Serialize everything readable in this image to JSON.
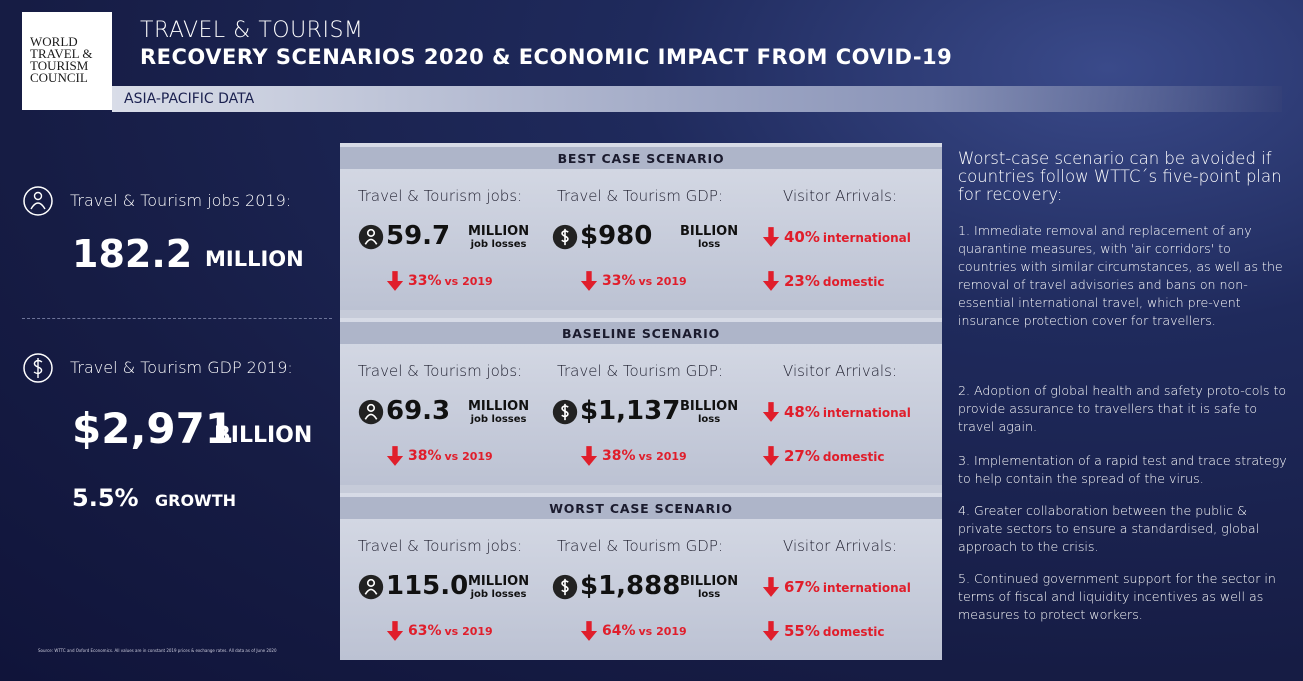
{
  "logo": [
    "WORLD",
    "TRAVEL &",
    "TOURISM",
    "COUNCIL"
  ],
  "header": {
    "title": "TRAVEL & TOURISM",
    "subtitle": "RECOVERY SCENARIOS 2020 & ECONOMIC IMPACT FROM COVID-19",
    "region": "ASIA-PACIFIC DATA"
  },
  "summary": {
    "jobs": {
      "label": "Travel & Tourism jobs 2019:",
      "value": "182.2",
      "unit": "MILLION"
    },
    "gdp": {
      "label": "Travel & Tourism GDP 2019:",
      "value": "$2,971",
      "unit": "BILLION"
    },
    "growth": {
      "value": "5.5%",
      "label": "GROWTH"
    },
    "source": "Source: WTTC and Oxford Economics. All values are in constant 2019 prices & exchange rates. All data as of June 2020"
  },
  "scenarios": [
    {
      "title": "BEST CASE SCENARIO",
      "jobs": {
        "label": "Travel & Tourism jobs:",
        "value": "59.7",
        "unit": "MILLION",
        "note": "job losses",
        "change": "33%",
        "compare": "vs 2019"
      },
      "gdp": {
        "label": "Travel & Tourism GDP:",
        "value": "$980",
        "unit": "BILLION",
        "note": "loss",
        "change": "33%",
        "compare": "vs 2019"
      },
      "arrivals": {
        "label": "Visitor Arrivals:",
        "international": "40%",
        "international_label": "international",
        "domestic": "23%",
        "domestic_label": "domestic"
      }
    },
    {
      "title": "BASELINE SCENARIO",
      "jobs": {
        "label": "Travel & Tourism jobs:",
        "value": "69.3",
        "unit": "MILLION",
        "note": "job losses",
        "change": "38%",
        "compare": "vs 2019"
      },
      "gdp": {
        "label": "Travel & Tourism GDP:",
        "value": "$1,137",
        "unit": "BILLION",
        "note": "loss",
        "change": "38%",
        "compare": "vs 2019"
      },
      "arrivals": {
        "label": "Visitor Arrivals:",
        "international": "48%",
        "international_label": "international",
        "domestic": "27%",
        "domestic_label": "domestic"
      }
    },
    {
      "title": "WORST CASE SCENARIO",
      "jobs": {
        "label": "Travel & Tourism jobs:",
        "value": "115.0",
        "unit": "MILLION",
        "note": "job losses",
        "change": "63%",
        "compare": "vs 2019"
      },
      "gdp": {
        "label": "Travel & Tourism GDP:",
        "value": "$1,888",
        "unit": "BILLION",
        "note": "loss",
        "change": "64%",
        "compare": "vs 2019"
      },
      "arrivals": {
        "label": "Visitor Arrivals:",
        "international": "67%",
        "international_label": "international",
        "domestic": "55%",
        "domestic_label": "domestic"
      }
    }
  ],
  "recovery": {
    "heading": "Worst-case scenario can be avoided if countries follow WTTC´s five-point plan for recovery:",
    "points": [
      "1. Immediate removal and replacement of any quarantine measures, with 'air corridors' to countries with similar circumstances, as well as the removal of  travel advisories and bans on non- essential international travel, which pre-vent insurance protection cover for travellers.",
      "2. Adoption of global health and safety proto-cols to provide assurance to travellers that it is safe to travel again.",
      "3. Implementation of a rapid test and trace strategy to help contain the spread of the virus.",
      "4. Greater collaboration between the public & private sectors to ensure a standardised, global approach to the crisis.",
      "5. Continued government support for the sector in terms of fiscal and liquidity incentives as well as measures to protect workers."
    ]
  }
}
